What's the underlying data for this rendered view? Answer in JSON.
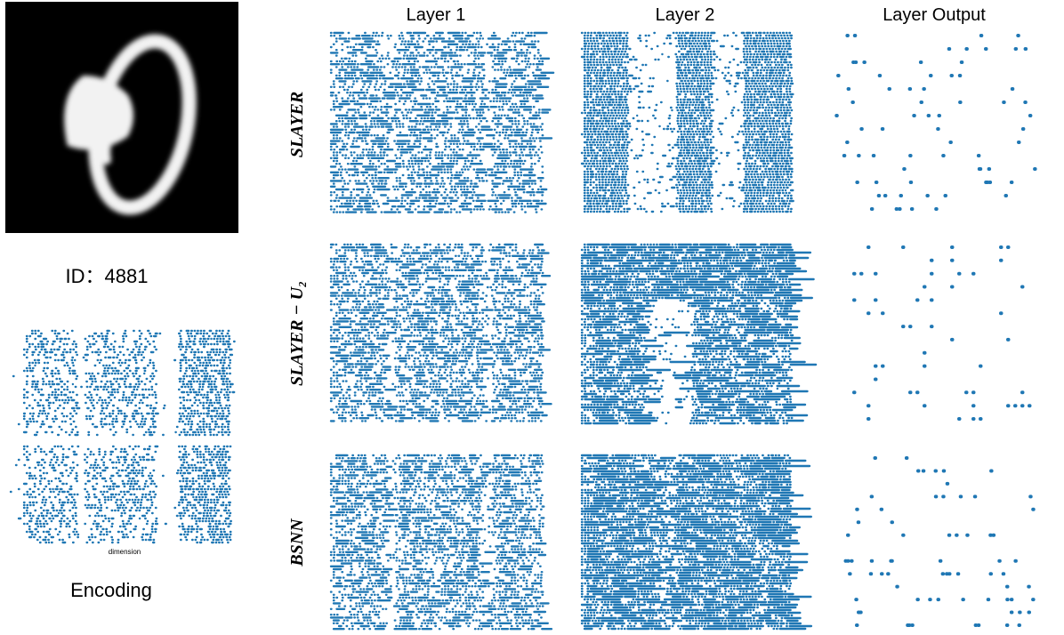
{
  "image": {
    "id_label": "ID：4881"
  },
  "encoding": {
    "axis_label": "dimension",
    "caption": "Encoding"
  },
  "columns": [
    "Layer 1",
    "Layer 2",
    "Layer Output"
  ],
  "rows": [
    "SLAYER",
    "SLAYER − U₂",
    "BSNN"
  ]
}
